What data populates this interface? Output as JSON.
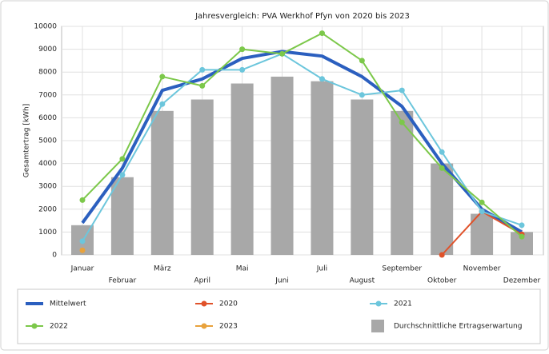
{
  "chart_data": {
    "type": "bar",
    "title": "Jahresvergleich: PVA Werkhof Pfyn von 2020 bis 2023",
    "y_label": "Gesamtertrag [kWh]",
    "categories": [
      "Januar",
      "Februar",
      "März",
      "April",
      "Mai",
      "Juni",
      "Juli",
      "August",
      "September",
      "Oktober",
      "November",
      "Dezember"
    ],
    "ylim": [
      0,
      10000
    ],
    "yticks": [
      0,
      1000,
      2000,
      3000,
      4000,
      5000,
      6000,
      7000,
      8000,
      9000,
      10000
    ],
    "grid": true,
    "legend": "bottom",
    "series": [
      {
        "name": "Mittelwert",
        "type": "line",
        "color": "#2b5fbf",
        "values": [
          1400,
          3800,
          7200,
          7700,
          8600,
          8900,
          8700,
          7800,
          6500,
          4000,
          2000,
          1000
        ]
      },
      {
        "name": "2020",
        "type": "line",
        "color": "#e0522a",
        "values": [
          null,
          null,
          null,
          null,
          null,
          null,
          null,
          null,
          null,
          0,
          1900,
          900
        ]
      },
      {
        "name": "2021",
        "type": "line",
        "color": "#6cc6dc",
        "values": [
          600,
          3500,
          6600,
          8100,
          8100,
          8800,
          7700,
          7000,
          7200,
          4500,
          1900,
          1300
        ]
      },
      {
        "name": "2022",
        "type": "line",
        "color": "#7cc84a",
        "values": [
          2400,
          4200,
          7800,
          7400,
          9000,
          8800,
          9700,
          8500,
          5800,
          3800,
          2300,
          800
        ]
      },
      {
        "name": "2023",
        "type": "line",
        "color": "#e8a23c",
        "values": [
          200,
          null,
          null,
          null,
          null,
          null,
          null,
          null,
          null,
          null,
          null,
          null
        ]
      },
      {
        "name": "Durchschnittliche Ertragserwartung",
        "type": "bar",
        "color": "#a8a8a8",
        "values": [
          1300,
          3400,
          6300,
          6800,
          7500,
          7800,
          7600,
          6800,
          6300,
          4000,
          1800,
          1000
        ]
      }
    ]
  }
}
